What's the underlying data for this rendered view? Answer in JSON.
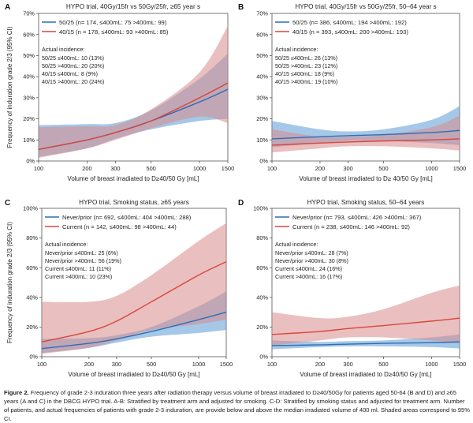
{
  "chart_data": [
    {
      "panel": "A",
      "type": "line",
      "title": "HYPO trial, 40Gy/15fr vs 50Gy/25fr, ≥65 year  s",
      "xlabel": "Volume of breast irradiated to D≥40/50 Gy [mL]",
      "ylabel": "Frequency of induration grade 2/3 (95% CI)",
      "xscale": "log",
      "xticks": [
        "100",
        "200",
        "300",
        "500",
        "1000",
        "1500"
      ],
      "yticks": [
        "0%",
        "10%",
        "20%",
        "30%",
        "40%",
        "50%",
        "60%",
        "70%"
      ],
      "xlim": [
        100,
        1500
      ],
      "ylim": [
        0,
        70
      ],
      "legend": [
        "50/25 (n= 174, ≤400mL: 75  >400mL: 99)",
        "40/15 (n = 178, ≤400mL: 93  >400mL: 85)"
      ],
      "incidence_title": "Actual incidence:",
      "incidence": [
        "50/25 ≤400mL: 10 (13%)",
        "50/25 >400mL: 20 (20%)",
        "40/15 ≤400mL: 8 (9%)",
        "40/15 >400mL: 20 (24%)"
      ],
      "x": [
        100,
        200,
        300,
        500,
        1000,
        1500
      ],
      "series": [
        {
          "name": "50/25",
          "values": [
            5.5,
            10,
            13.5,
            19,
            28,
            34
          ],
          "lower": [
            2,
            6,
            10.5,
            15,
            19,
            20
          ],
          "upper": [
            17,
            17.5,
            18,
            24,
            39,
            51
          ]
        },
        {
          "name": "40/15",
          "values": [
            5.5,
            10,
            13.5,
            19,
            30,
            37
          ],
          "lower": [
            1.5,
            6,
            10,
            15.5,
            21,
            18
          ],
          "upper": [
            16,
            16.5,
            17,
            24.5,
            42,
            64
          ]
        }
      ]
    },
    {
      "panel": "B",
      "type": "line",
      "title": "HYPO trial, 40Gy/15fr vs 50Gy/25fr, 50–64 year  s",
      "xlabel": "Volume of breast irradiated to D≥ 40/50 Gy [mL]",
      "ylabel": "",
      "xscale": "log",
      "xticks": [
        "100",
        "200",
        "300",
        "500",
        "1000",
        "1500"
      ],
      "yticks": [
        "0%",
        "10%",
        "20%",
        "30%",
        "40%",
        "50%",
        "60%",
        "70%"
      ],
      "xlim": [
        100,
        1500
      ],
      "ylim": [
        0,
        70
      ],
      "legend": [
        "50/25 (n= 386, ≤400mL: 194  >400mL: 192)",
        "40/15 (n = 393, ≤400mL: 200  >400mL: 193)"
      ],
      "incidence_title": "Actual incidence:",
      "incidence": [
        "50/25 ≤400mL: 26 (13%)",
        "50/25 >400mL: 23 (12%)",
        "40/15 ≤400mL: 18 (9%)",
        "40/15 >400mL: 19 (10%)"
      ],
      "x": [
        100,
        200,
        300,
        500,
        1000,
        1500
      ],
      "series": [
        {
          "name": "50/25",
          "values": [
            10.5,
            11.5,
            12,
            12.5,
            13.5,
            14.5
          ],
          "lower": [
            6.5,
            8.5,
            9.5,
            9.5,
            8.5,
            7.5
          ],
          "upper": [
            19,
            15,
            14,
            15,
            19.5,
            26
          ]
        },
        {
          "name": "40/15",
          "values": [
            7.5,
            8.5,
            9,
            9.5,
            10,
            10.5
          ],
          "lower": [
            4,
            6,
            7,
            7,
            6,
            5
          ],
          "upper": [
            15,
            11.5,
            11.5,
            12.5,
            16,
            21.5
          ]
        }
      ]
    },
    {
      "panel": "C",
      "type": "line",
      "title": "HYPO trial, Smoking status, ≥65 years",
      "xlabel": "Volume of breast irradiated to D≥40/50 Gy [mL]",
      "ylabel": "Frequency of induration grade 2/3 (95% CI)",
      "xscale": "log",
      "xticks": [
        "100",
        "200",
        "300",
        "500",
        "1000",
        "1500"
      ],
      "yticks": [
        "0%",
        "20%",
        "40%",
        "60%",
        "80%",
        "100%"
      ],
      "xlim": [
        100,
        1500
      ],
      "ylim": [
        0,
        100
      ],
      "legend": [
        "Never/prior  (n=  692, ≤400mL: 404  >400mL: 288)",
        "Current (n = 142, ≤400mL: 98  >400mL: 44)"
      ],
      "incidence_title": "Actual incidence:",
      "incidence": [
        "Never/prior ≤400mL: 25 (6%)",
        "Never/prior >400mL: 56 (19%)",
        "Current ≤400mL: 11 (11%)",
        "Current >400mL: 10 (23%)"
      ],
      "x": [
        100,
        200,
        300,
        500,
        1000,
        1500
      ],
      "series": [
        {
          "name": "Never/prior",
          "values": [
            5.5,
            9,
            12,
            17,
            25,
            30
          ],
          "lower": [
            2.5,
            6,
            9.5,
            13.5,
            16,
            18
          ],
          "upper": [
            12,
            12.5,
            14.5,
            20,
            34,
            44
          ]
        },
        {
          "name": "Current",
          "values": [
            10,
            17,
            24,
            37,
            55,
            64
          ],
          "lower": [
            2,
            6,
            11,
            18,
            22,
            25
          ],
          "upper": [
            37,
            37,
            41,
            55,
            78,
            90
          ]
        }
      ]
    },
    {
      "panel": "D",
      "type": "line",
      "title": "HYPO trial, Smoking status, 50–64 years",
      "xlabel": "Volume of breast irradiated to D≥40/50 Gy [mL]",
      "ylabel": "",
      "xscale": "log",
      "xticks": [
        "100",
        "200",
        "300",
        "500",
        "1000",
        "1500"
      ],
      "yticks": [
        "0%",
        "20%",
        "40%",
        "60%",
        "80%",
        "100%"
      ],
      "xlim": [
        100,
        1500
      ],
      "ylim": [
        0,
        100
      ],
      "legend": [
        "Never/prior  (n=  793, ≤400mL: 426  >400mL: 367)",
        "Current (n = 238, ≤400mL: 146  >400mL: 92)"
      ],
      "incidence_title": "Actual incidence:",
      "incidence": [
        "Never/prior ≤400mL: 28 (7%)",
        "Never/prior >400mL: 30 (8%)",
        "Current ≤400mL: 24 (16%)",
        "Current >400mL: 16 (17%)"
      ],
      "x": [
        100,
        200,
        300,
        500,
        1000,
        1500
      ],
      "series": [
        {
          "name": "Never/prior",
          "values": [
            7.5,
            8,
            8.5,
            9,
            9.5,
            10
          ],
          "lower": [
            5,
            6.5,
            7,
            7,
            6.5,
            5.5
          ],
          "upper": [
            11,
            10,
            10.5,
            11,
            13,
            15
          ]
        },
        {
          "name": "Current",
          "values": [
            15,
            17,
            19,
            21,
            24,
            26
          ],
          "lower": [
            7.5,
            11,
            13,
            13,
            11,
            9
          ],
          "upper": [
            30,
            26,
            27,
            32,
            43,
            48
          ]
        }
      ]
    }
  ],
  "caption": {
    "label": "Figure 2.",
    "text": "Frequency of grade 2-3 induration three years after radiation therapy versus volume of breast irradiated to D≥40/50Gy for patients aged 50-64 (B and D) and ≥65 years (A and C) in the DBCG HYPO trial. A-B: Stratified by treatment arm and adjusted for smoking. C-D: Stratified by smoking status and adjusted for treatment arm. Number of patients, and actual frequencies of patients with grade 2-3 induration, are provide below and above the median irradiated volume of 400 ml. Shaded areas correspond to 95% CI."
  },
  "colors": {
    "blue_line": "#2f6db5",
    "red_line": "#d9463d",
    "blue_band": "#5b9bd5",
    "red_band": "#d98a8a",
    "axis": "#555555"
  }
}
